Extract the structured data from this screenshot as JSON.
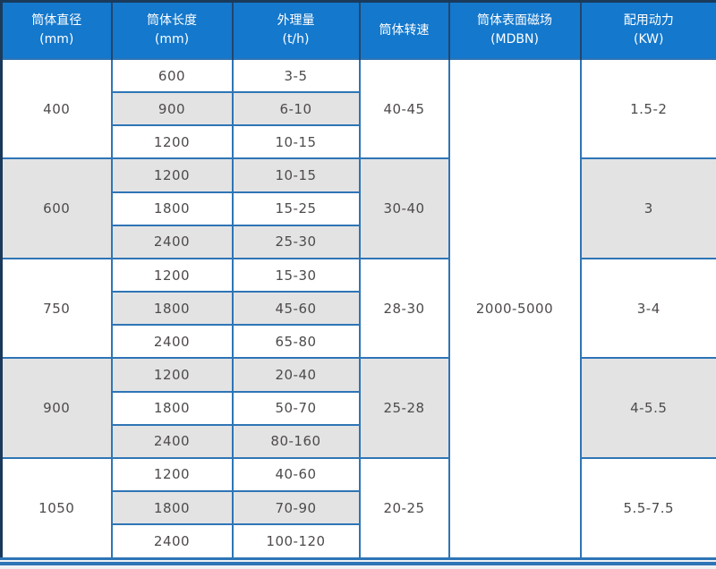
{
  "table": {
    "headers": [
      {
        "line1": "筒体直径",
        "line2": "(mm)"
      },
      {
        "line1": "筒体长度",
        "line2": "(mm)"
      },
      {
        "line1": "外理量",
        "line2": "(t/h)"
      },
      {
        "line1": "筒体转速",
        "line2": ""
      },
      {
        "line1": "筒体表面磁场",
        "line2": "(MDBN)"
      },
      {
        "line1": "配用动力",
        "line2": "(KW)"
      }
    ],
    "magnetic_field": "2000-5000",
    "groups": [
      {
        "diameter": "400",
        "speed": "40-45",
        "power": "1.5-2",
        "rows": [
          [
            "600",
            "3-5"
          ],
          [
            "900",
            "6-10"
          ],
          [
            "1200",
            "10-15"
          ]
        ]
      },
      {
        "diameter": "600",
        "speed": "30-40",
        "power": "3",
        "rows": [
          [
            "1200",
            "10-15"
          ],
          [
            "1800",
            "15-25"
          ],
          [
            "2400",
            "25-30"
          ]
        ]
      },
      {
        "diameter": "750",
        "speed": "28-30",
        "power": "3-4",
        "rows": [
          [
            "1200",
            "15-30"
          ],
          [
            "1800",
            "45-60"
          ],
          [
            "2400",
            "65-80"
          ]
        ]
      },
      {
        "diameter": "900",
        "speed": "25-28",
        "power": "4-5.5",
        "rows": [
          [
            "1200",
            "20-40"
          ],
          [
            "1800",
            "50-70"
          ],
          [
            "2400",
            "80-160"
          ]
        ]
      },
      {
        "diameter": "1050",
        "speed": "20-25",
        "power": "5.5-7.5",
        "rows": [
          [
            "1200",
            "40-60"
          ],
          [
            "1800",
            "70-90"
          ],
          [
            "2400",
            "100-120"
          ]
        ]
      }
    ],
    "colors": {
      "header_bg": "#1478cc",
      "header_text": "#ffffff",
      "outer_border": "#1a3a5c",
      "cell_border": "#2e75b6",
      "row_white": "#ffffff",
      "row_gray": "#e3e3e3",
      "body_text": "#4f4a4a",
      "page_bg": "#eef1f4"
    }
  }
}
